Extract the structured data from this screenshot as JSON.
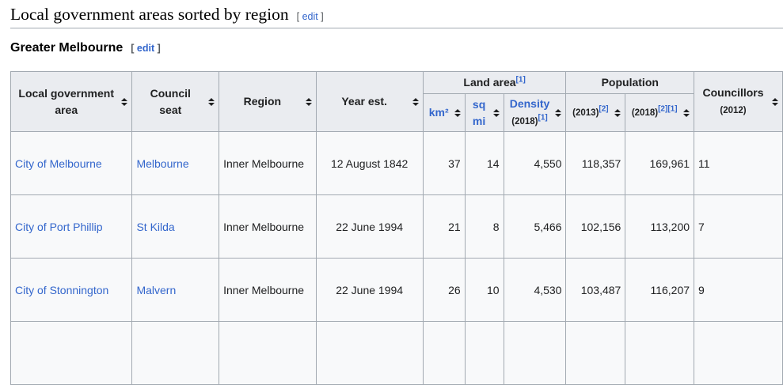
{
  "heading": {
    "title": "Local government areas sorted by region",
    "edit_open": "[",
    "edit_label": "edit",
    "edit_close": "]"
  },
  "subheading": {
    "title": "Greater Melbourne",
    "edit_open": "[",
    "edit_label": "edit",
    "edit_close": "]"
  },
  "table": {
    "headers": {
      "lga_line1": "Local government",
      "lga_line2": "area",
      "seat_line1": "Council",
      "seat_line2": "seat",
      "region": "Region",
      "year": "Year est.",
      "land_area": "Land area",
      "land_area_ref": "[1]",
      "population": "Population",
      "councillors": "Councillors",
      "councillors_year": "(2012)",
      "km2": "km²",
      "sqmi_line1": "sq",
      "sqmi_line2": "mi",
      "density": "Density",
      "density_year": "(2018)",
      "density_ref": "[1]",
      "pop2013": "(2013)",
      "pop2013_ref": "[2]",
      "pop2018": "(2018)",
      "pop2018_ref1": "[2]",
      "pop2018_ref2": "[1]"
    },
    "rows": [
      {
        "lga": "City of Melbourne",
        "seat": "Melbourne",
        "region": "Inner Melbourne",
        "year": "12 August 1842",
        "km2": "37",
        "sqmi": "14",
        "density": "4,550",
        "pop2013": "118,357",
        "pop2018": "169,961",
        "councillors": "11"
      },
      {
        "lga": "City of Port Phillip",
        "seat": "St Kilda",
        "region": "Inner Melbourne",
        "year": "22 June 1994",
        "km2": "21",
        "sqmi": "8",
        "density": "5,466",
        "pop2013": "102,156",
        "pop2018": "113,200",
        "councillors": "7"
      },
      {
        "lga": "City of Stonnington",
        "seat": "Malvern",
        "region": "Inner Melbourne",
        "year": "22 June 1994",
        "km2": "26",
        "sqmi": "10",
        "density": "4,530",
        "pop2013": "103,487",
        "pop2018": "116,207",
        "councillors": "9"
      }
    ]
  }
}
